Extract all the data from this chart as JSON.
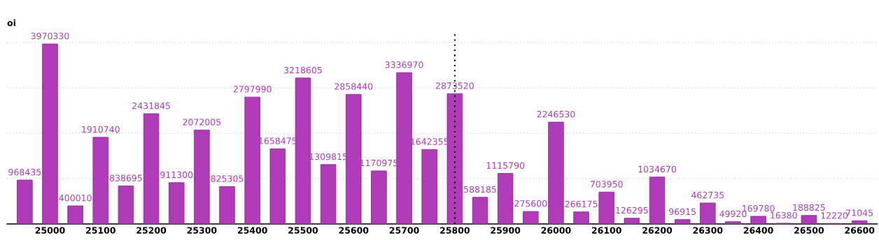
{
  "chart_data": {
    "type": "bar",
    "ylabel": "oi",
    "color": "#b03bb8",
    "x": [
      24950,
      25000,
      25050,
      25100,
      25150,
      25200,
      25250,
      25300,
      25350,
      25400,
      25450,
      25500,
      25550,
      25600,
      25650,
      25700,
      25750,
      25800,
      25850,
      25900,
      25950,
      26000,
      26050,
      26100,
      26150,
      26200,
      26250,
      26300,
      26350,
      26400,
      26450,
      26500,
      26550,
      26600
    ],
    "values": [
      968435,
      3970330,
      400010,
      1910740,
      838695,
      2431845,
      911300,
      2072005,
      825305,
      2797990,
      1658475,
      3218605,
      1309815,
      2858440,
      1170975,
      3336970,
      1642355,
      2873520,
      588185,
      1115790,
      275600,
      2246530,
      266175,
      703950,
      126295,
      1034670,
      96915,
      462735,
      49920,
      169780,
      16380,
      188825,
      12220,
      71045
    ],
    "data_labels": true,
    "xlim": [
      24915,
      26635
    ],
    "xticks": [
      25000,
      25100,
      25200,
      25300,
      25400,
      25500,
      25600,
      25700,
      25800,
      25900,
      26000,
      26100,
      26200,
      26300,
      26400,
      26500,
      26600
    ],
    "ylim": [
      0,
      4200000
    ],
    "yticks": [
      {
        "value": 0,
        "label": null
      },
      {
        "value": 1000000,
        "label": null
      },
      {
        "value": 2000000,
        "label": null
      },
      {
        "value": 3000000,
        "label": null
      },
      {
        "value": 4000000,
        "label": null
      }
    ],
    "tick_labels": "x",
    "grid": "y",
    "ref_lines": [
      {
        "axis": "x",
        "value": 25800,
        "color": "#000000",
        "line_style": "dotted"
      }
    ]
  }
}
